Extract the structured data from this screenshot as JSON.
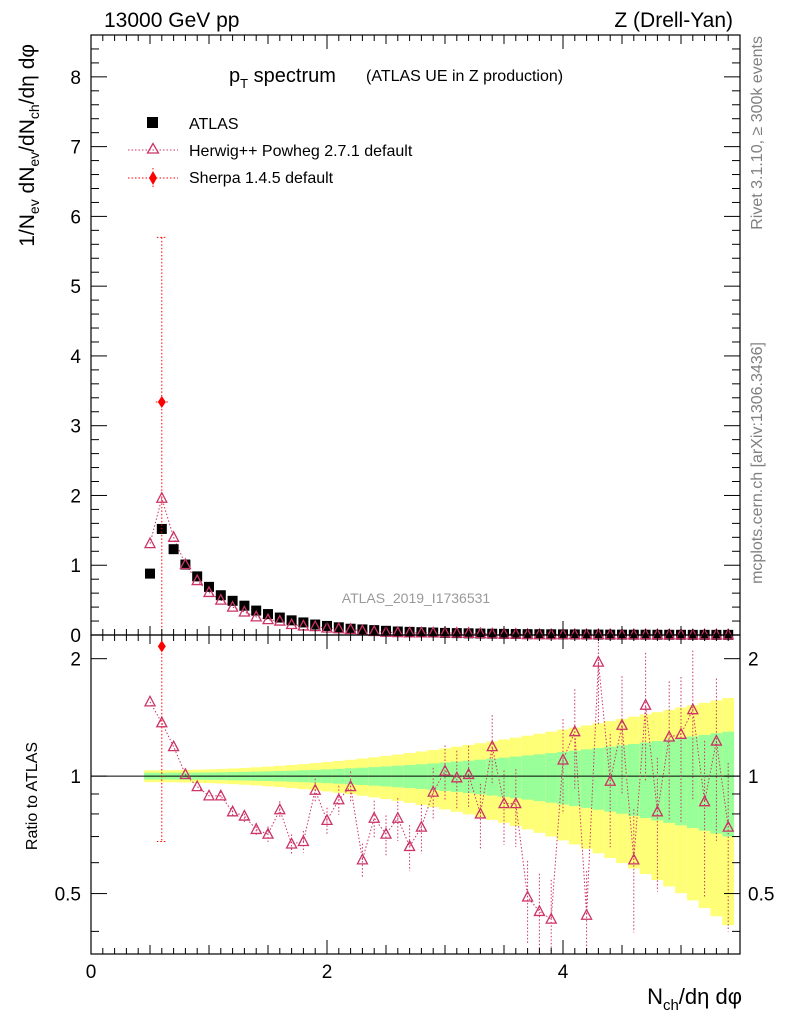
{
  "header": {
    "beam": "13000 GeV pp",
    "process": "Z (Drell-Yan)"
  },
  "side_labels": {
    "rivet": "Rivet 3.1.10, ≥ 300k events",
    "mcplots": "mcplots.cern.ch [arXiv:1306.3436]"
  },
  "watermark": "ATLAS_2019_I1736531",
  "colors": {
    "atlas": "#000000",
    "herwig": "#cc3366",
    "sherpa": "#ff0000",
    "band_inner": "#99ff99",
    "band_outer": "#ffff77"
  },
  "chart_data": [
    {
      "type": "scatter",
      "title": "p",
      "title_sub": "T",
      "title_rest": " spectrum",
      "subtitle": "(ATLAS UE in Z production)",
      "ylabel_parts": {
        "a": "1/N",
        "a_sub": "ev",
        "b": " dN",
        "b_sub": "ev",
        "c": "/dN",
        "c_sub": "ch",
        "d": "/dη dφ"
      },
      "xlim": [
        0,
        5.5
      ],
      "ylim": [
        0,
        8.6
      ],
      "yticks": [
        0,
        1,
        2,
        3,
        4,
        5,
        6,
        7,
        8
      ],
      "legend": [
        "ATLAS",
        "Herwig++ Powheg 2.7.1 default",
        "Sherpa 1.4.5 default"
      ],
      "legend_position": "top-left",
      "series": [
        {
          "name": "ATLAS",
          "marker": "square",
          "x": [
            0.5,
            0.6,
            0.7,
            0.8,
            0.9,
            1.0,
            1.1,
            1.2,
            1.3,
            1.4,
            1.5,
            1.6,
            1.7,
            1.8,
            1.9,
            2.0,
            2.1,
            2.2,
            2.3,
            2.4,
            2.5,
            2.6,
            2.7,
            2.8,
            2.9,
            3.0,
            3.1,
            3.2,
            3.3,
            3.4,
            3.5,
            3.6,
            3.7,
            3.8,
            3.9,
            4.0,
            4.1,
            4.2,
            4.3,
            4.4,
            4.5,
            4.6,
            4.7,
            4.8,
            4.9,
            5.0,
            5.1,
            5.2,
            5.3,
            5.4
          ],
          "values": [
            0.88,
            1.52,
            1.23,
            1.01,
            0.84,
            0.69,
            0.57,
            0.49,
            0.42,
            0.35,
            0.3,
            0.25,
            0.21,
            0.18,
            0.15,
            0.13,
            0.11,
            0.09,
            0.08,
            0.07,
            0.06,
            0.05,
            0.045,
            0.04,
            0.035,
            0.03,
            0.027,
            0.024,
            0.021,
            0.018,
            0.016,
            0.014,
            0.012,
            0.011,
            0.01,
            0.009,
            0.008,
            0.007,
            0.006,
            0.005,
            0.005,
            0.004,
            0.004,
            0.003,
            0.003,
            0.003,
            0.002,
            0.002,
            0.002,
            0.002
          ]
        },
        {
          "name": "Herwig++ Powheg 2.7.1 default",
          "marker": "open-triangle",
          "x": [
            0.5,
            0.6,
            0.7,
            0.8,
            0.9,
            1.0,
            1.1,
            1.2,
            1.3,
            1.4,
            1.5,
            1.6,
            1.7,
            1.8,
            1.9,
            2.0,
            2.1,
            2.2,
            2.3,
            2.4,
            2.5,
            2.6,
            2.7,
            2.8,
            2.9,
            3.0,
            3.1,
            3.2,
            3.3,
            3.4,
            3.5,
            3.6,
            3.7,
            3.8,
            3.9,
            4.0,
            4.1,
            4.2,
            4.3,
            4.4,
            4.5,
            4.6,
            4.7,
            4.8,
            4.9,
            5.0,
            5.1,
            5.2,
            5.3,
            5.4
          ],
          "values": [
            1.31,
            1.96,
            1.4,
            1.01,
            0.78,
            0.61,
            0.5,
            0.4,
            0.33,
            0.26,
            0.22,
            0.2,
            0.15,
            0.13,
            0.12,
            0.1,
            0.09,
            0.08,
            0.06,
            0.05,
            0.04,
            0.035,
            0.03,
            0.03,
            0.03,
            0.03,
            0.027,
            0.024,
            0.02,
            0.016,
            0.013,
            0.012,
            0.006,
            0.005,
            0.004,
            0.006,
            0.005,
            0.004,
            0.005,
            0.004,
            0.004,
            0.003,
            0.003,
            0.003,
            0.003,
            0.003,
            0.002,
            0.002,
            0.002,
            0.002
          ],
          "ratio": [
            1.55,
            1.37,
            1.19,
            1.01,
            0.94,
            0.89,
            0.89,
            0.81,
            0.79,
            0.73,
            0.71,
            0.82,
            0.67,
            0.68,
            0.92,
            0.77,
            0.87,
            0.94,
            0.61,
            0.78,
            0.71,
            0.78,
            0.66,
            0.74,
            0.91,
            1.03,
            0.99,
            1.01,
            0.8,
            1.19,
            0.85,
            0.85,
            0.49,
            0.45,
            0.43,
            1.1,
            1.3,
            0.44,
            1.96,
            0.97,
            1.35,
            0.61,
            1.52,
            0.81,
            1.26,
            1.28,
            1.48,
            0.86,
            1.23,
            0.74
          ]
        },
        {
          "name": "Sherpa 1.4.5 default",
          "marker": "diamond",
          "x": [
            0.6
          ],
          "values": [
            3.34
          ],
          "ratio": [
            2.15
          ]
        }
      ]
    },
    {
      "type": "scatter",
      "ylabel": "Ratio to ATLAS",
      "xlabel_parts": {
        "a": "N",
        "a_sub": "ch",
        "b": "/dη dφ"
      },
      "xlim": [
        0,
        5.5
      ],
      "ylim": [
        0.35,
        2.3
      ],
      "ytick_labels": [
        "0.5",
        "1",
        "2"
      ],
      "xtick_labels": [
        "0",
        "2",
        "4"
      ],
      "reference": 1
    }
  ]
}
